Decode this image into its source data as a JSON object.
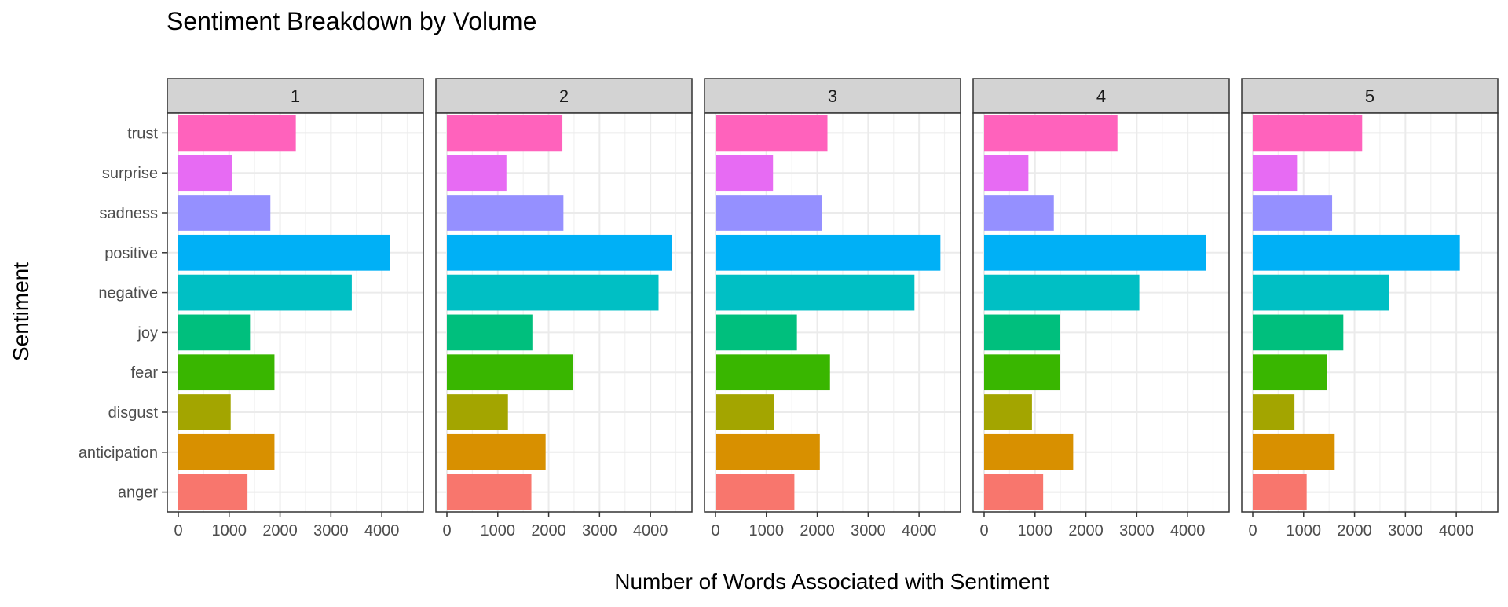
{
  "chart_data": {
    "type": "bar",
    "orientation": "horizontal",
    "faceted": true,
    "title": "Sentiment Breakdown by Volume",
    "xlabel": "Number of Words Associated with Sentiment",
    "ylabel": "Sentiment",
    "xlim": [
      0,
      4600
    ],
    "x_ticks": [
      0,
      1000,
      2000,
      3000,
      4000
    ],
    "x_tick_labels": [
      "0",
      "1000",
      "2000",
      "3000",
      "4000"
    ],
    "categories": [
      "anger",
      "anticipation",
      "disgust",
      "fear",
      "joy",
      "negative",
      "positive",
      "sadness",
      "surprise",
      "trust"
    ],
    "category_colors": {
      "anger": "#F8766D",
      "anticipation": "#D89000",
      "disgust": "#A3A500",
      "fear": "#39B600",
      "joy": "#00BF7D",
      "negative": "#00BFC4",
      "positive": "#00B0F6",
      "sadness": "#9590FF",
      "surprise": "#E76BF3",
      "trust": "#FF62BC"
    },
    "grid": true,
    "legend": "none",
    "panels": [
      {
        "label": "1",
        "values": {
          "anger": 1360,
          "anticipation": 1890,
          "disgust": 1030,
          "fear": 1890,
          "joy": 1410,
          "negative": 3410,
          "positive": 4160,
          "sadness": 1810,
          "surprise": 1060,
          "trust": 2310
        }
      },
      {
        "label": "2",
        "values": {
          "anger": 1660,
          "anticipation": 1940,
          "disgust": 1200,
          "fear": 2480,
          "joy": 1680,
          "negative": 4160,
          "positive": 4420,
          "sadness": 2290,
          "surprise": 1170,
          "trust": 2270
        }
      },
      {
        "label": "3",
        "values": {
          "anger": 1550,
          "anticipation": 2050,
          "disgust": 1150,
          "fear": 2250,
          "joy": 1600,
          "negative": 3910,
          "positive": 4420,
          "sadness": 2090,
          "surprise": 1130,
          "trust": 2200
        }
      },
      {
        "label": "4",
        "values": {
          "anger": 1160,
          "anticipation": 1750,
          "disgust": 940,
          "fear": 1490,
          "joy": 1490,
          "negative": 3050,
          "positive": 4360,
          "sadness": 1370,
          "surprise": 870,
          "trust": 2620
        }
      },
      {
        "label": "5",
        "values": {
          "anger": 1060,
          "anticipation": 1610,
          "disgust": 820,
          "fear": 1460,
          "joy": 1780,
          "negative": 2680,
          "positive": 4070,
          "sadness": 1560,
          "surprise": 870,
          "trust": 2150
        }
      }
    ]
  }
}
